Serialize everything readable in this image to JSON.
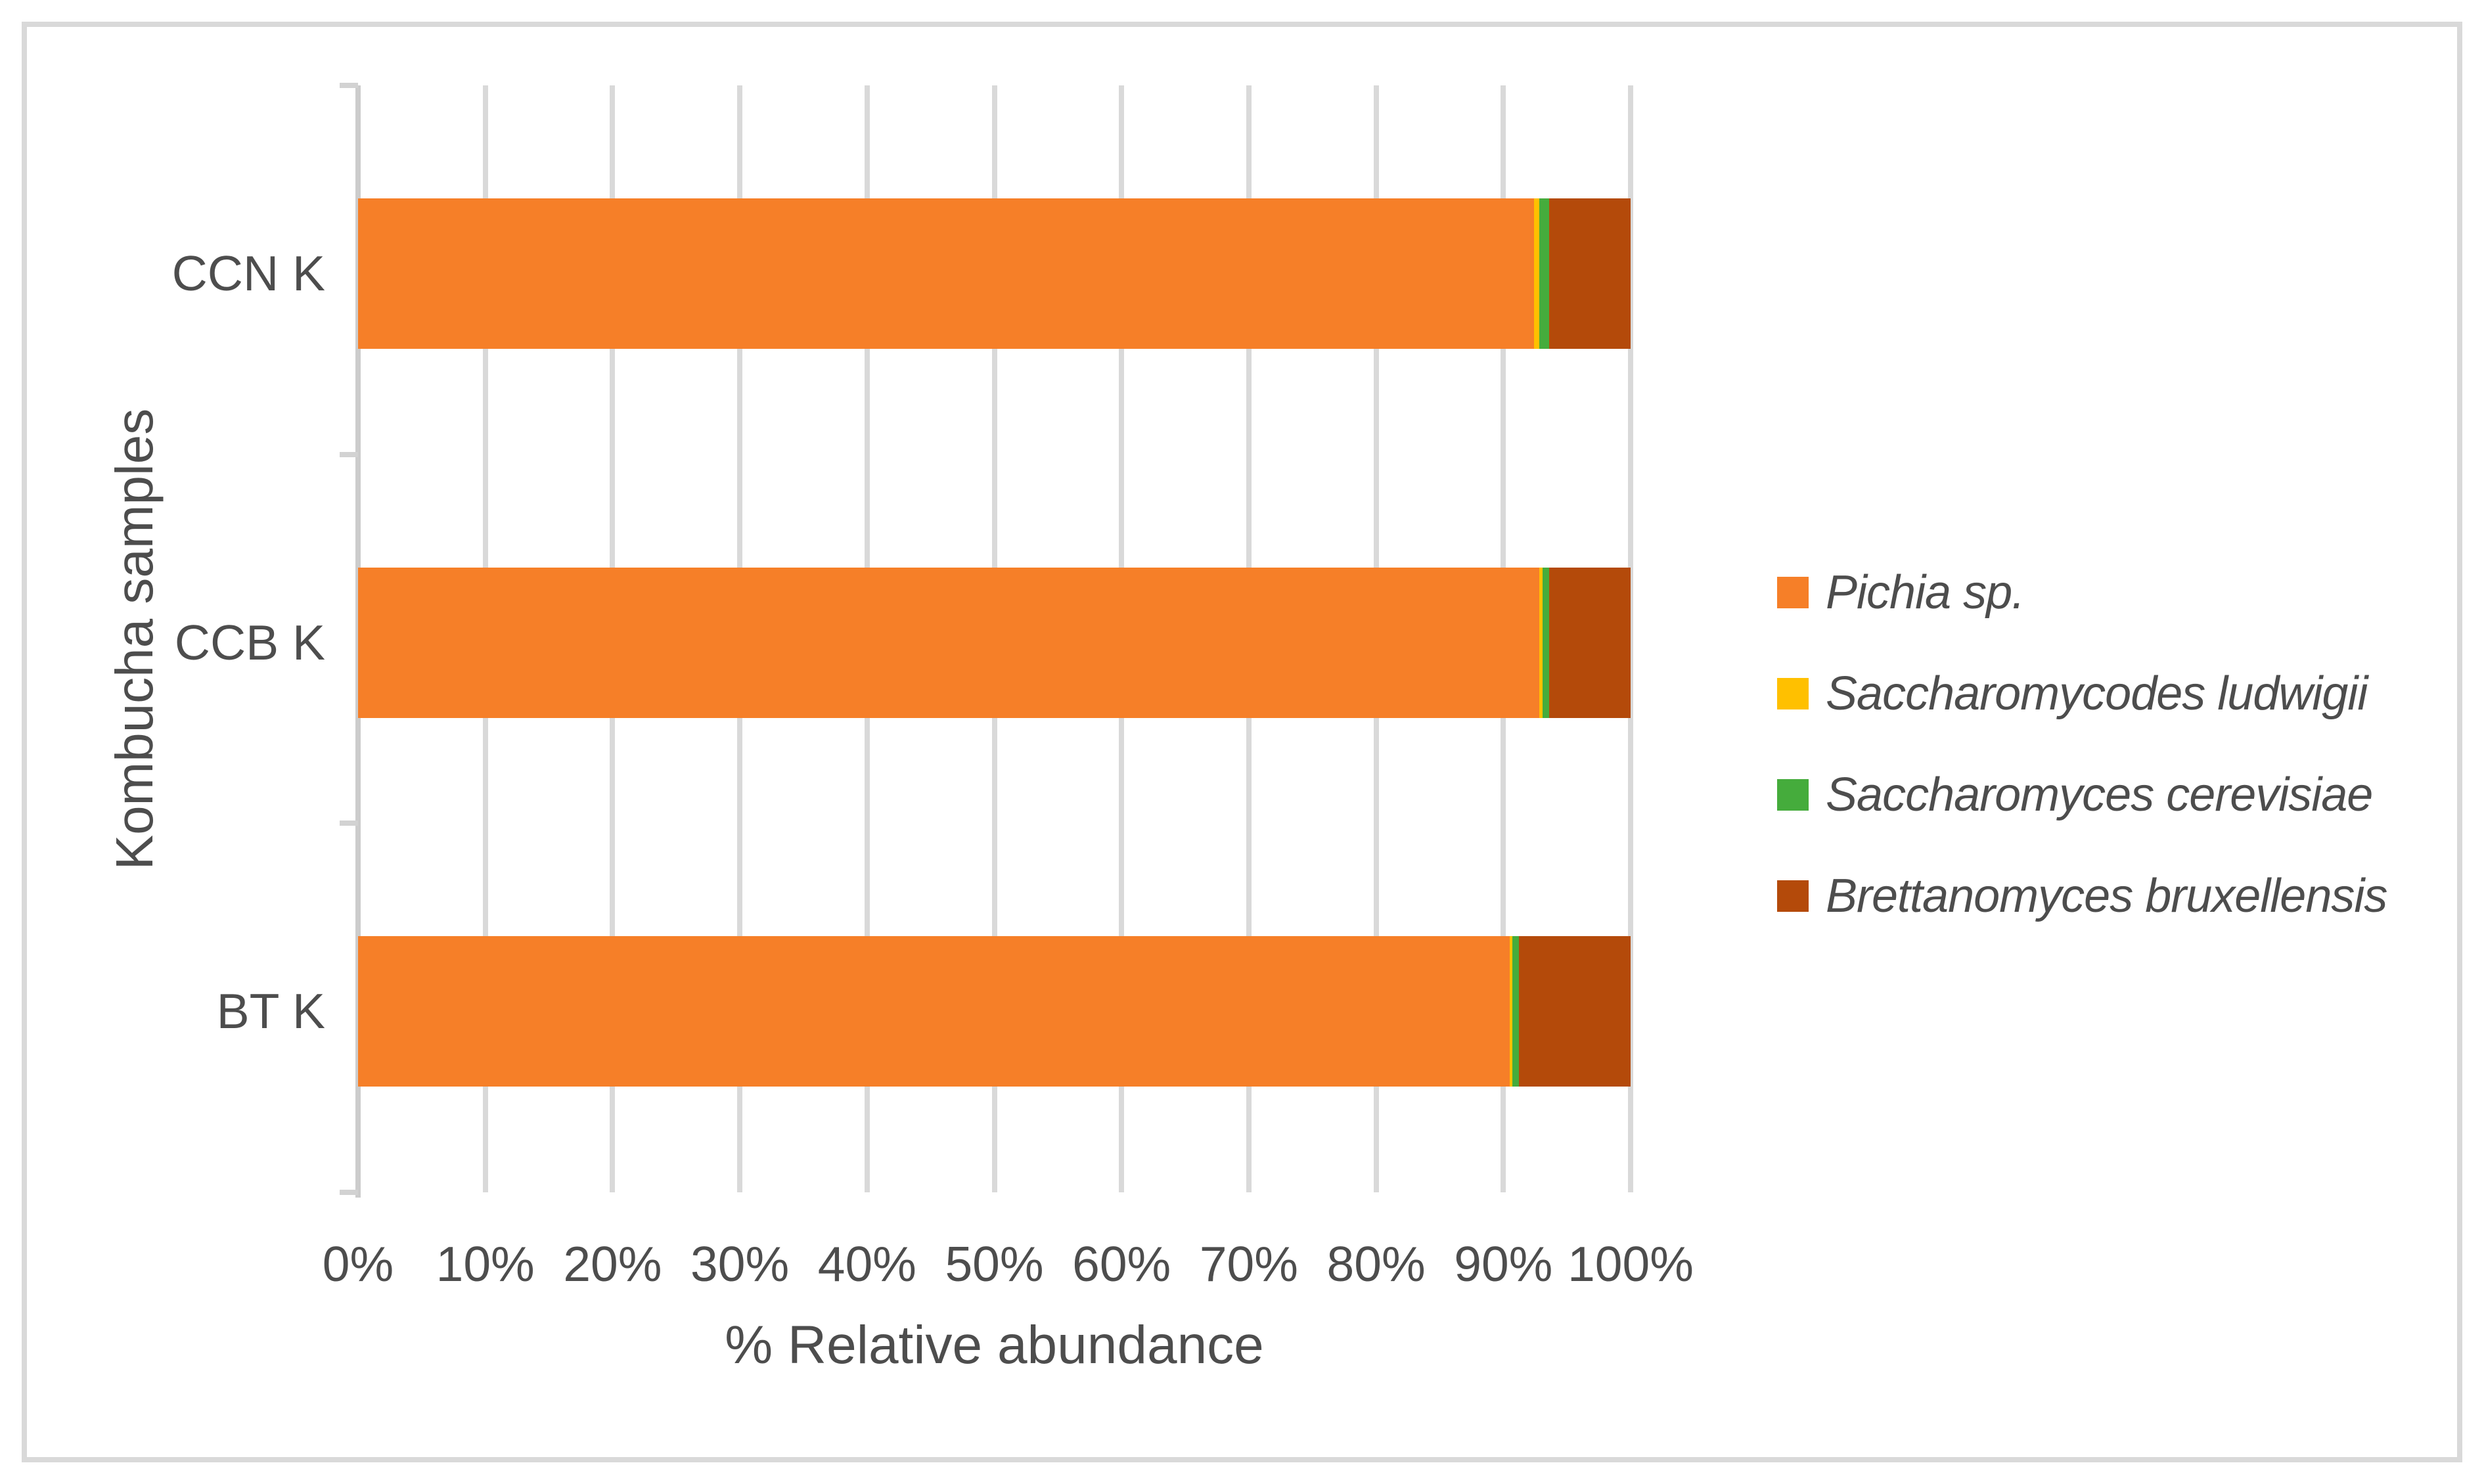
{
  "figure": {
    "border_color": "#d9d9d9",
    "background_color": "#ffffff",
    "text_color": "#4d4d4d",
    "gridline_color": "#d9d9d9"
  },
  "chart_data": {
    "type": "bar",
    "orientation": "horizontal",
    "stacked": true,
    "title": "",
    "xlabel": "% Relative abundance",
    "ylabel": "Kombucha samples",
    "categories": [
      "CCN K",
      "CCB K",
      "BT K"
    ],
    "x_ticks": [
      "0%",
      "10%",
      "20%",
      "30%",
      "40%",
      "50%",
      "60%",
      "70%",
      "80%",
      "90%",
      "100%"
    ],
    "xlim": [
      0,
      100
    ],
    "grid": "vertical",
    "legend_position": "right",
    "series": [
      {
        "name": "Pichia sp.",
        "color": "#f67f28",
        "values": [
          92.4,
          92.8,
          90.5
        ]
      },
      {
        "name": "Saccharomycodes ludwigii",
        "color": "#ffc000",
        "values": [
          0.4,
          0.3,
          0.2
        ]
      },
      {
        "name": "Saccharomyces cerevisiae",
        "color": "#45ac3c",
        "values": [
          0.8,
          0.5,
          0.5
        ]
      },
      {
        "name": "Brettanomyces bruxellensis",
        "color": "#b44a0a",
        "values": [
          6.4,
          6.4,
          8.8
        ]
      }
    ]
  }
}
